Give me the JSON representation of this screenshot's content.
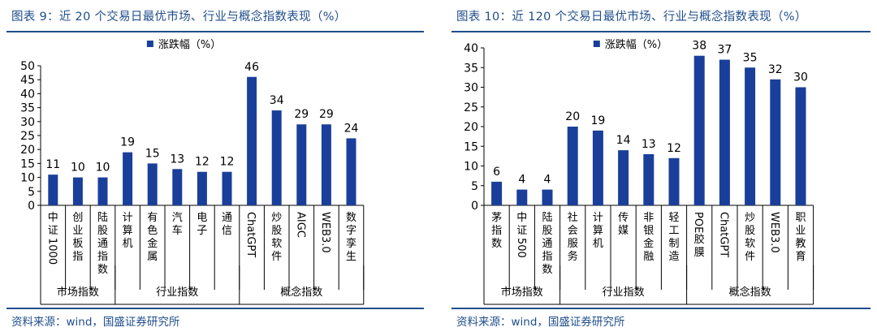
{
  "colors": {
    "bar": "#1a3f9a",
    "title": "#1f4e8c",
    "axis": "#000000"
  },
  "panels": [
    {
      "title": "图表 9：近 20 个交易日最优市场、行业与概念指数表现（%）",
      "source": "资料来源：wind，国盛证券研究所",
      "chart_data": {
        "type": "bar",
        "series": [
          {
            "name": "涨跌幅（%）",
            "values": [
              11,
              10,
              10,
              19,
              15,
              13,
              12,
              12,
              46,
              34,
              29,
              29,
              24
            ]
          }
        ],
        "categories": [
          "中证1000",
          "创业板指",
          "陆股通指数",
          "计算机",
          "有色金属",
          "汽车",
          "电子",
          "通信",
          "ChatGPT",
          "炒股软件",
          "AIGC",
          "WEB3.0",
          "数字孪生"
        ],
        "ylim": [
          0,
          50
        ],
        "yticks": [
          0,
          5,
          10,
          15,
          20,
          25,
          30,
          35,
          40,
          45,
          50
        ],
        "groups": [
          {
            "label": "市场指数",
            "count": 3
          },
          {
            "label": "行业指数",
            "count": 5
          },
          {
            "label": "概念指数",
            "count": 5
          }
        ],
        "legend": "top-center"
      }
    },
    {
      "title": "图表 10：近 120 个交易日最优市场、行业与概念指数表现（%）",
      "source": "资料来源：wind，国盛证券研究所",
      "chart_data": {
        "type": "bar",
        "series": [
          {
            "name": "涨跌幅（%）",
            "values": [
              6,
              4,
              4,
              20,
              19,
              14,
              13,
              12,
              38,
              37,
              35,
              32,
              30
            ]
          }
        ],
        "categories": [
          "茅指数",
          "中证500",
          "陆股通指数",
          "社会服务",
          "计算机",
          "传媒",
          "非银金融",
          "轻工制造",
          "POE胶膜",
          "ChatGPT",
          "炒股软件",
          "WEB3.0",
          "职业教育"
        ],
        "ylim": [
          0,
          40
        ],
        "yticks": [
          0,
          5,
          10,
          15,
          20,
          25,
          30,
          35,
          40
        ],
        "groups": [
          {
            "label": "市场指数",
            "count": 3
          },
          {
            "label": "行业指数",
            "count": 5
          },
          {
            "label": "概念指数",
            "count": 5
          }
        ],
        "legend": "top-center"
      }
    }
  ]
}
